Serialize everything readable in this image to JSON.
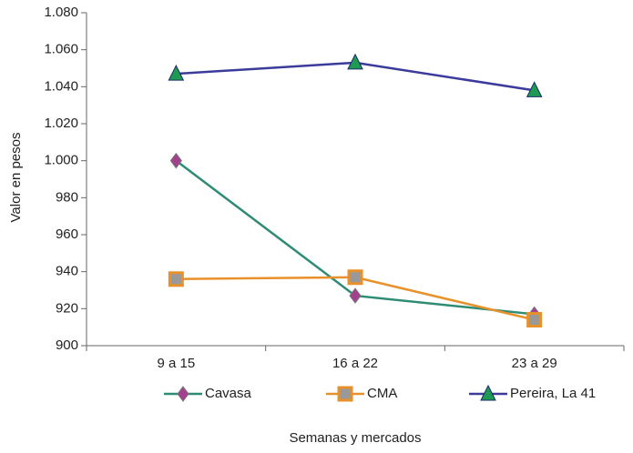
{
  "chart_data": {
    "type": "line",
    "x_label": "Semanas y mercados",
    "y_label": "Valor en pesos",
    "categories": [
      "9 a 15",
      "16 a 22",
      "23 a 29"
    ],
    "series": [
      {
        "name": "Cavasa",
        "color": "#2e8b74",
        "marker": "diamond",
        "marker_color": "#a3418f",
        "values": [
          1000,
          927,
          917
        ]
      },
      {
        "name": "CMA",
        "color": "#e8902a",
        "marker": "square",
        "marker_color": "#e8902a",
        "values": [
          936,
          937,
          914
        ]
      },
      {
        "name": "Pereira, La 41",
        "color": "#3b3b9c",
        "marker": "triangle",
        "marker_color": "#1f9a52",
        "values": [
          1047,
          1053,
          1038
        ]
      }
    ],
    "ylim": [
      900,
      1080
    ],
    "yticks": [
      900,
      920,
      940,
      960,
      980,
      {
        "value": 1000,
        "label": "1.000"
      },
      {
        "value": 1020,
        "label": "1.020"
      },
      {
        "value": 1040,
        "label": "1.040"
      },
      {
        "value": 1060,
        "label": "1.060"
      },
      {
        "value": 1080,
        "label": "1.080"
      }
    ],
    "grid": false,
    "legend": "bottom"
  }
}
